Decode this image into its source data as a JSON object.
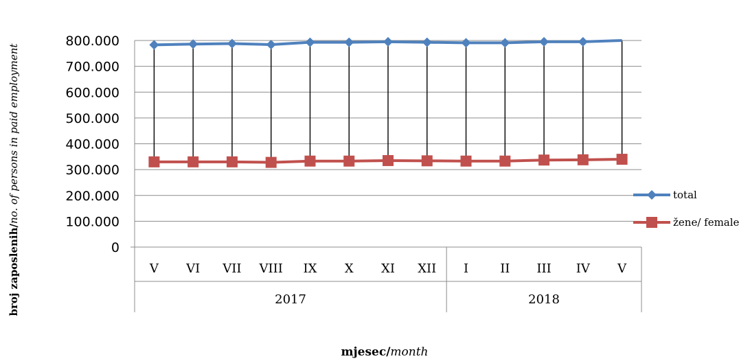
{
  "chart_data": {
    "type": "line",
    "categories": [
      "V",
      "VI",
      "VII",
      "VIII",
      "IX",
      "X",
      "XI",
      "XII",
      "I",
      "II",
      "III",
      "IV",
      "V"
    ],
    "groups": [
      {
        "label": "2017",
        "count": 8
      },
      {
        "label": "2018",
        "count": 5
      }
    ],
    "series": [
      {
        "name": "total",
        "color": "#4F81BD",
        "marker": "diamond",
        "values": [
          783000,
          786000,
          788000,
          784000,
          793000,
          793000,
          795000,
          793000,
          791000,
          791000,
          795000,
          795000,
          800000
        ]
      },
      {
        "name": "žene/ female",
        "color": "#C0504D",
        "marker": "square",
        "values": [
          330000,
          330000,
          330000,
          328000,
          333000,
          333000,
          335000,
          334000,
          333000,
          333000,
          337000,
          338000,
          340000
        ]
      }
    ],
    "ylim": [
      0,
      800000
    ],
    "yticks": [
      "0",
      "100.000",
      "200.000",
      "300.000",
      "400.000",
      "500.000",
      "600.000",
      "700.000",
      "800.000"
    ],
    "drop_lines": true,
    "grid": true,
    "legend_position": "right",
    "ylabel": {
      "bold": "broj zaposlenih/",
      "italic": "no. of persons in paid employment"
    },
    "xlabel": {
      "bold": "mjesec/",
      "italic": "month"
    }
  }
}
